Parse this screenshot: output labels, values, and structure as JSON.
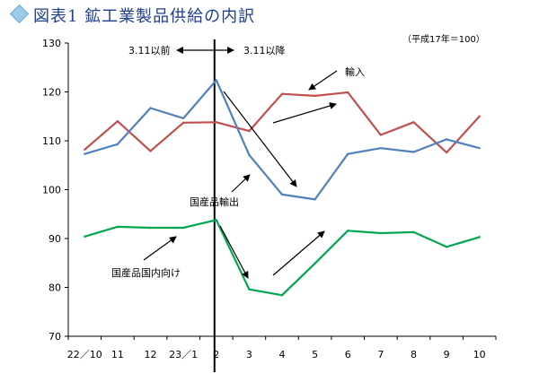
{
  "title": "図表1 鉱工業製品供給の内訳",
  "unit_label": "（平成17年＝100）",
  "annotations": {
    "before": "3.11以前",
    "after": "3.11以降",
    "imports": "輸入",
    "exports": "国産品輸出",
    "domestic": "国産品国内向け"
  },
  "chart_data": {
    "type": "line",
    "categories": [
      "22／10",
      "11",
      "12",
      "23／1",
      "2",
      "3",
      "4",
      "5",
      "6",
      "7",
      "8",
      "9",
      "10"
    ],
    "ylim": [
      70,
      130
    ],
    "yticks": [
      70,
      80,
      90,
      100,
      110,
      120,
      130
    ],
    "grid": false,
    "event_marker_category": "2",
    "series": [
      {
        "name": "輸入",
        "color": "#c0504d",
        "values": [
          108.2,
          114.0,
          107.9,
          113.7,
          113.8,
          112.0,
          119.6,
          119.2,
          119.9,
          111.2,
          113.8,
          107.6,
          115.0
        ]
      },
      {
        "name": "国産品輸出",
        "color": "#4f81bd",
        "values": [
          107.3,
          109.3,
          116.7,
          114.6,
          122.4,
          107.1,
          99.0,
          98.0,
          107.3,
          108.5,
          107.7,
          110.3,
          108.5
        ]
      },
      {
        "name": "国産品国内向け",
        "color": "#00a651",
        "values": [
          90.4,
          92.4,
          92.2,
          92.2,
          93.8,
          79.6,
          78.4,
          84.9,
          91.6,
          91.1,
          91.3,
          88.3,
          90.3
        ]
      }
    ]
  }
}
